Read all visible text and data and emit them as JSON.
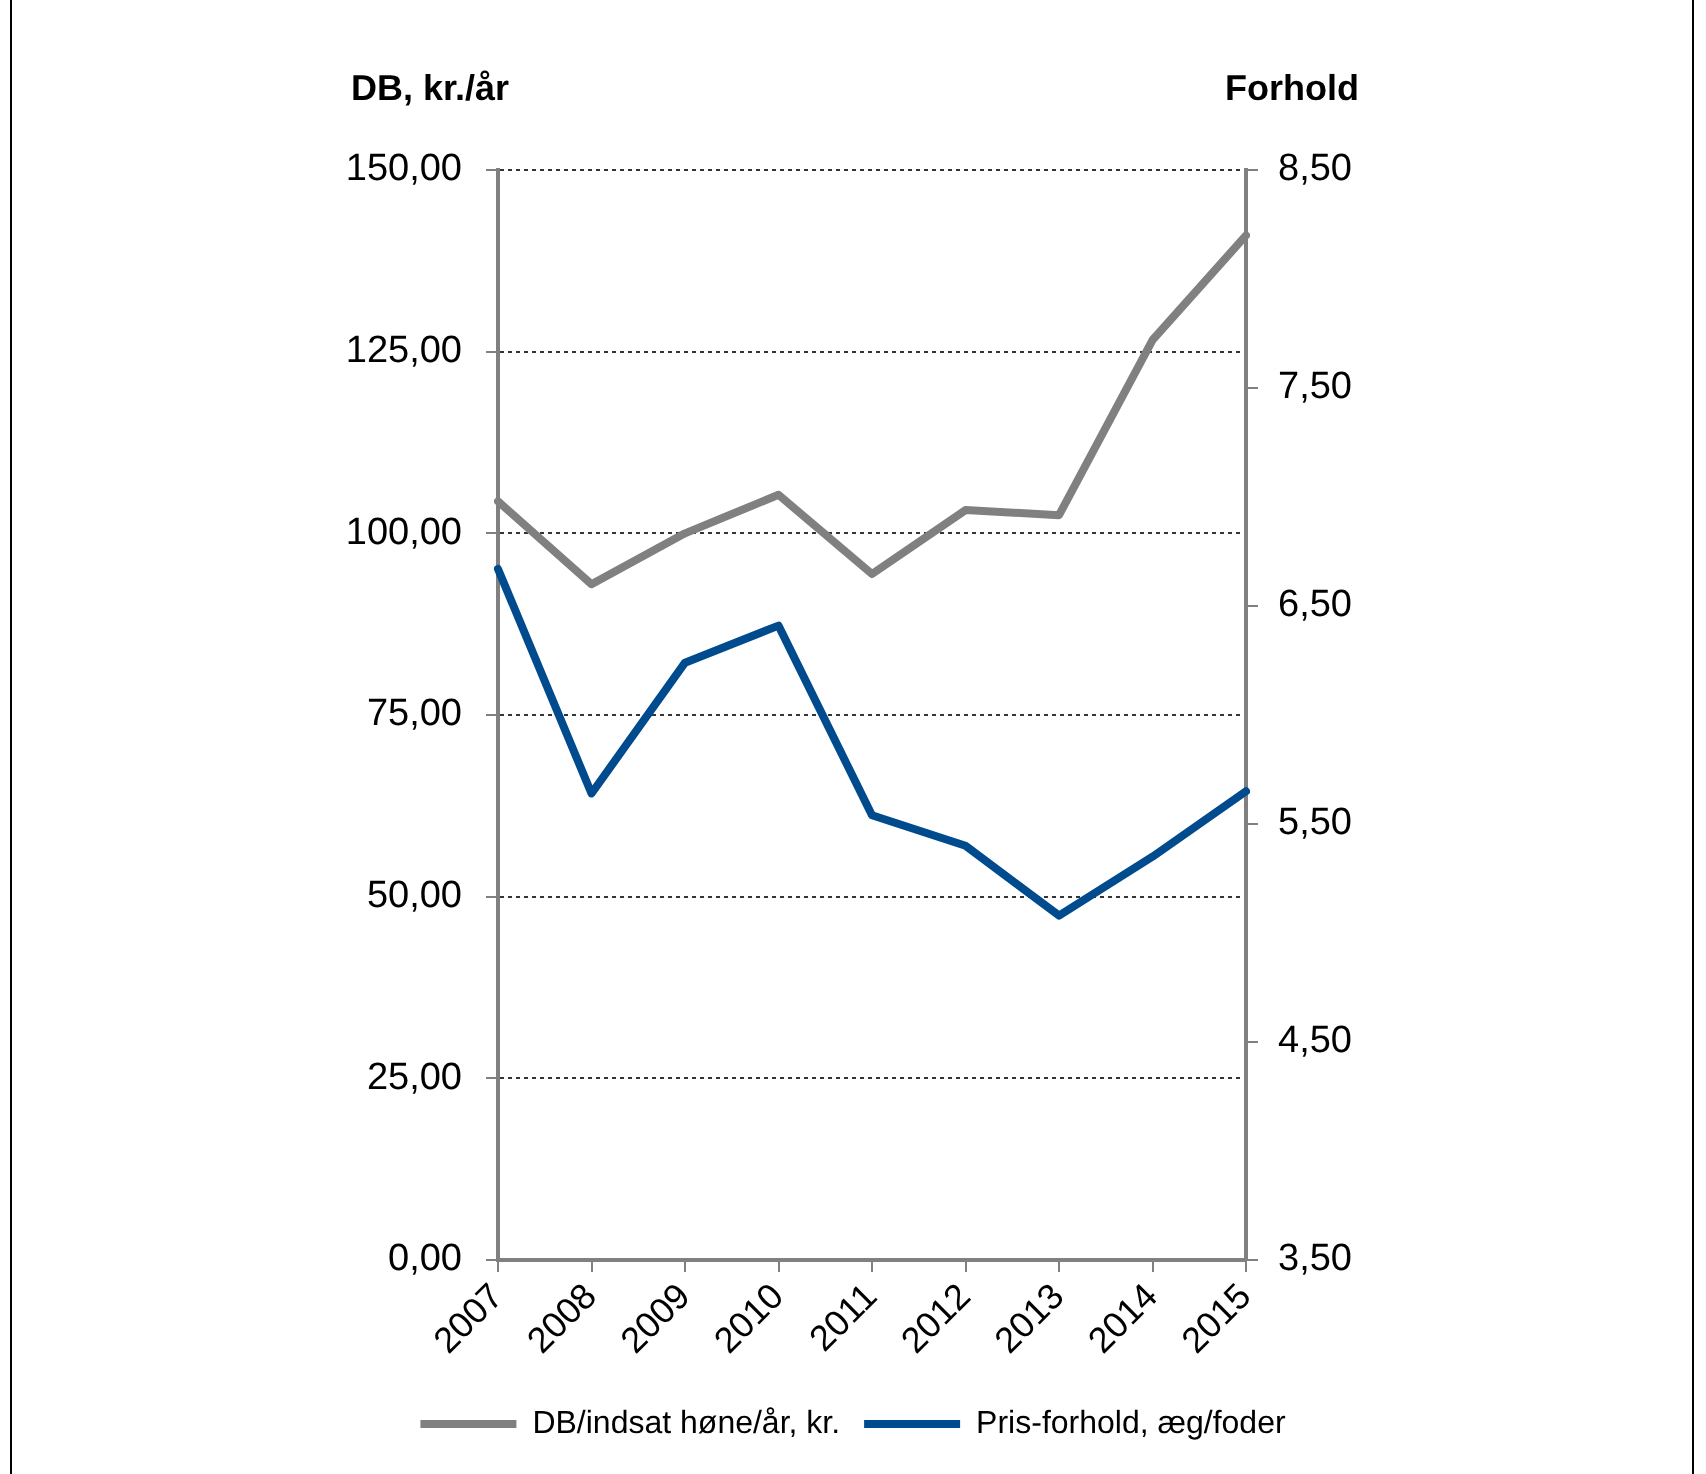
{
  "chart_data": {
    "type": "line",
    "ylabel": "DB, kr./år",
    "y2label": "Forhold",
    "categories": [
      "2007",
      "2008",
      "2009",
      "2010",
      "2011",
      "2012",
      "2013",
      "2014",
      "2015"
    ],
    "series": [
      {
        "name": "DB/indsat høne/år, kr.",
        "color": "#808080",
        "values": [
          104.4,
          93.0,
          100.0,
          105.3,
          94.4,
          103.2,
          102.5,
          126.6,
          141.0
        ]
      },
      {
        "name": "Pris-forhold, æg/foder",
        "color": "#004b8d",
        "axis": "y2",
        "values": [
          6.67,
          5.64,
          6.24,
          6.41,
          5.54,
          5.4,
          5.08,
          5.35,
          5.65
        ]
      }
    ],
    "ylim": [
      0,
      150
    ],
    "yticks": [
      {
        "value": 0,
        "label": "0,00"
      },
      {
        "value": 25,
        "label": "25,00"
      },
      {
        "value": 50,
        "label": "50,00"
      },
      {
        "value": 75,
        "label": "75,00"
      },
      {
        "value": 100,
        "label": "100,00"
      },
      {
        "value": 125,
        "label": "125,00"
      },
      {
        "value": 150,
        "label": "150,00"
      }
    ],
    "y2lim": [
      3.5,
      8.5
    ],
    "y2ticks": [
      {
        "value": 3.5,
        "label": "3,50"
      },
      {
        "value": 4.5,
        "label": "4,50"
      },
      {
        "value": 5.5,
        "label": "5,50"
      },
      {
        "value": 6.5,
        "label": "6,50"
      },
      {
        "value": 7.5,
        "label": "7,50"
      },
      {
        "value": 8.5,
        "label": "8,50"
      }
    ],
    "grid": "y",
    "legend": "bottom",
    "marker": "none",
    "line_style": "solid"
  }
}
